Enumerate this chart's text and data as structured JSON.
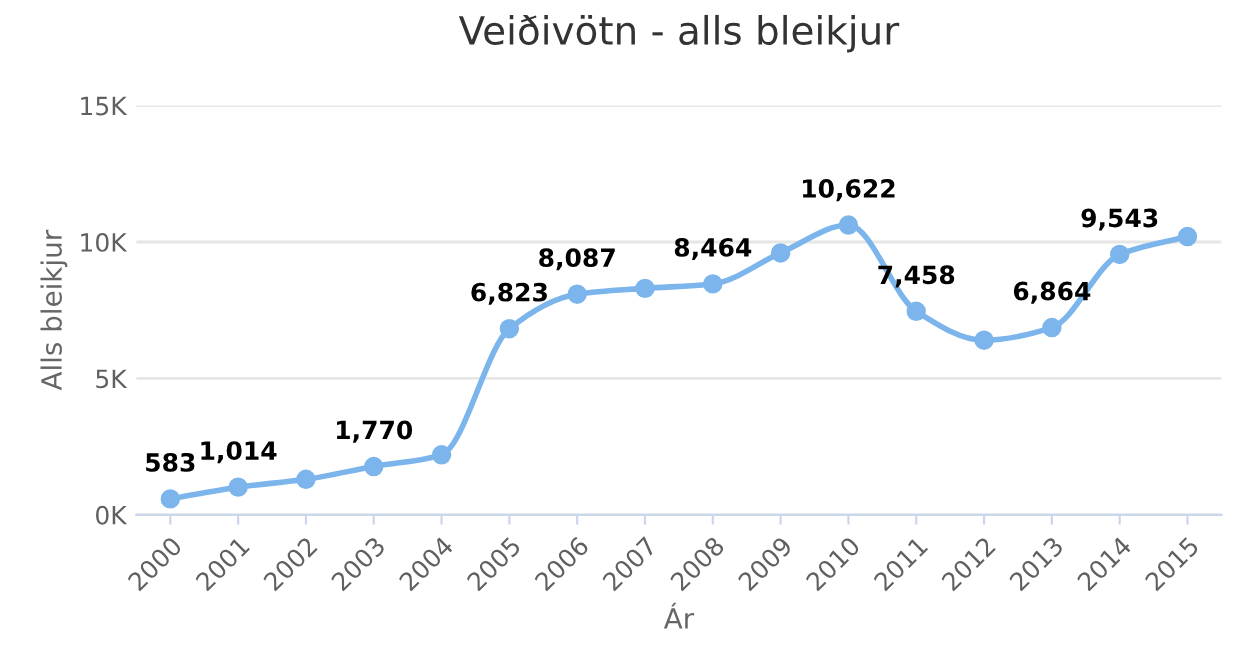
{
  "chart_data": {
    "type": "line",
    "title": "Veiðivötn - alls bleikjur",
    "xlabel": "Ár",
    "ylabel": "Alls bleikjur",
    "categories": [
      "2000",
      "2001",
      "2002",
      "2003",
      "2004",
      "2005",
      "2006",
      "2007",
      "2008",
      "2009",
      "2010",
      "2011",
      "2012",
      "2013",
      "2014",
      "2015"
    ],
    "series": [
      {
        "color": "#7cb5ec",
        "values": [
          583,
          1014,
          1300,
          1770,
          2200,
          6823,
          8087,
          8300,
          8464,
          9600,
          10622,
          7458,
          6400,
          6864,
          9543,
          10200
        ],
        "value_labels": [
          "583",
          "1,014",
          null,
          "1,770",
          null,
          "6,823",
          "8,087",
          null,
          "8,464",
          null,
          "10,622",
          "7,458",
          null,
          "6,864",
          "9,543",
          null
        ]
      }
    ],
    "ylim": [
      0,
      15000
    ],
    "yticks": [
      {
        "value": 0,
        "label": "0K"
      },
      {
        "value": 5000,
        "label": "5K"
      },
      {
        "value": 10000,
        "label": "10K"
      },
      {
        "value": 15000,
        "label": "15K"
      }
    ],
    "grid": "y",
    "marker": "circle",
    "legend": false
  }
}
